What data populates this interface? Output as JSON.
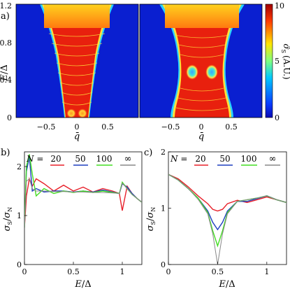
{
  "figure": {
    "panel_a": {
      "label": "a)",
      "ylabel_E": "E",
      "ylabel_slash": "/",
      "ylabel_delta": "Δ",
      "y_ticks": [
        "0",
        "0.4",
        "0.8",
        "1.2"
      ],
      "x_ticks": [
        "−0.5",
        "0",
        "0.5"
      ],
      "xlabel": "q̄",
      "colorbar": {
        "label_sigma": "σ̃",
        "label_sub": "S",
        "label_unit": "(A.U.)",
        "ticks": [
          "0",
          "5",
          "10"
        ]
      }
    },
    "panel_b": {
      "label": "b)",
      "legend_N": "N = ",
      "legend": [
        "20",
        "50",
        "100",
        "∞"
      ],
      "y_ticks": [
        "0",
        "1",
        "2"
      ],
      "x_ticks": [
        "0",
        "0.5",
        "1"
      ],
      "ylabel_sigma": "σ",
      "ylabel_sub_s": "S",
      "ylabel_slash": "/",
      "ylabel_sub_n": "N",
      "xlabel_E": "E",
      "xlabel_slash": "/",
      "xlabel_delta": "Δ"
    },
    "panel_c": {
      "label": "c)",
      "legend_N": "N = ",
      "legend": [
        "20",
        "50",
        "100",
        "∞"
      ],
      "y_ticks": [
        "0",
        "1",
        "2"
      ],
      "x_ticks": [
        "0",
        "0.5",
        "1"
      ],
      "ylabel_sigma": "σ",
      "ylabel_sub_s": "S",
      "ylabel_slash": "/",
      "ylabel_sub_n": "N",
      "xlabel_E": "E",
      "xlabel_slash": "/",
      "xlabel_delta": "Δ"
    }
  },
  "colors": {
    "N20": "#e8202a",
    "N50": "#1f3fbf",
    "N100": "#44dd22",
    "Ninf": "#888888",
    "map_blue": "#0a1fd0",
    "map_red": "#e8200e"
  },
  "chart_data": [
    {
      "type": "heatmap",
      "panel": "a (left)",
      "xlim": [
        -1,
        1
      ],
      "ylim": [
        0,
        1.2
      ],
      "zlim": [
        0,
        10
      ],
      "description_values": {
        "red_region_halfwidth_at_E": [
          [
            0,
            0.16
          ],
          [
            0.4,
            0.3
          ],
          [
            0.8,
            0.44
          ],
          [
            1.0,
            0.52
          ]
        ],
        "orange_band_E": [
          1.0,
          1.2
        ]
      }
    },
    {
      "type": "heatmap",
      "panel": "a (right)",
      "xlim": [
        -1,
        1
      ],
      "ylim": [
        0,
        1.2
      ],
      "zlim": [
        0,
        10
      ],
      "description_values": {
        "red_region_halfwidth_at_E": [
          [
            0,
            0.4
          ],
          [
            0.3,
            0.33
          ],
          [
            0.5,
            0.28
          ],
          [
            0.7,
            0.33
          ],
          [
            1.0,
            0.42
          ]
        ],
        "blue_spots_E": 0.5,
        "blue_spots_q": [
          -0.1,
          0.1
        ]
      }
    },
    {
      "type": "line",
      "panel": "b",
      "xlim": [
        0,
        1.2
      ],
      "ylim": [
        0,
        2.3
      ],
      "x": [
        0,
        0.02,
        0.05,
        0.08,
        0.12,
        0.2,
        0.3,
        0.4,
        0.5,
        0.6,
        0.7,
        0.8,
        0.9,
        0.97,
        1.0,
        1.05,
        1.1,
        1.15,
        1.2
      ],
      "series": [
        {
          "name": "20",
          "values": [
            0.75,
            1.4,
            1.75,
            1.6,
            1.75,
            1.65,
            1.5,
            1.62,
            1.5,
            1.58,
            1.48,
            1.55,
            1.5,
            1.45,
            1.1,
            1.6,
            1.45,
            1.35,
            1.27
          ]
        },
        {
          "name": "50",
          "values": [
            0.75,
            1.9,
            2.2,
            1.5,
            1.55,
            1.48,
            1.5,
            1.5,
            1.48,
            1.5,
            1.48,
            1.52,
            1.48,
            1.45,
            1.65,
            1.58,
            1.45,
            1.35,
            1.27
          ]
        },
        {
          "name": "100",
          "values": [
            0.75,
            2.0,
            2.25,
            1.85,
            1.4,
            1.55,
            1.45,
            1.5,
            1.47,
            1.5,
            1.47,
            1.5,
            1.47,
            1.45,
            1.68,
            1.55,
            1.43,
            1.35,
            1.27
          ]
        },
        {
          "name": "∞",
          "values": [
            0.75,
            1.7,
            1.75,
            1.55,
            1.5,
            1.5,
            1.49,
            1.49,
            1.48,
            1.48,
            1.47,
            1.47,
            1.46,
            1.45,
            1.66,
            1.55,
            1.43,
            1.35,
            1.27
          ]
        }
      ]
    },
    {
      "type": "line",
      "panel": "c",
      "xlim": [
        0,
        1.2
      ],
      "ylim": [
        0,
        2
      ],
      "x": [
        0,
        0.1,
        0.2,
        0.3,
        0.4,
        0.45,
        0.5,
        0.55,
        0.6,
        0.7,
        0.8,
        0.9,
        1.0,
        1.1,
        1.2
      ],
      "series": [
        {
          "name": "20",
          "values": [
            1.6,
            1.52,
            1.38,
            1.22,
            1.08,
            0.98,
            0.95,
            0.98,
            1.08,
            1.14,
            1.1,
            1.15,
            1.2,
            1.15,
            1.1
          ]
        },
        {
          "name": "50",
          "values": [
            1.6,
            1.5,
            1.35,
            1.18,
            0.95,
            0.75,
            0.62,
            0.75,
            0.95,
            1.12,
            1.12,
            1.17,
            1.22,
            1.15,
            1.1
          ]
        },
        {
          "name": "100",
          "values": [
            1.6,
            1.5,
            1.35,
            1.18,
            0.92,
            0.6,
            0.33,
            0.6,
            0.92,
            1.12,
            1.15,
            1.18,
            1.22,
            1.15,
            1.1
          ]
        },
        {
          "name": "∞",
          "values": [
            1.6,
            1.5,
            1.35,
            1.16,
            0.9,
            0.55,
            0.0,
            0.55,
            0.9,
            1.12,
            1.15,
            1.18,
            1.22,
            1.15,
            1.1
          ]
        }
      ]
    }
  ]
}
